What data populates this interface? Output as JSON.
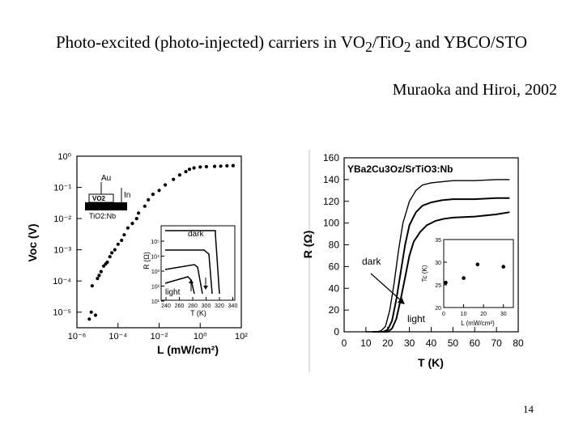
{
  "slide": {
    "title_parts": [
      "Photo-excited (photo-injected) carriers in VO",
      "2",
      "/TiO",
      "2",
      " and YBCO/STO"
    ],
    "authors": "Muraoka and Hiroi, 2002",
    "page_number": "14"
  },
  "chart_data": [
    {
      "type": "scatter",
      "xlabel": "L (mW/cm²)",
      "ylabel": "Voc (V)",
      "x_scale": "log",
      "y_scale": "log",
      "xlim": [
        1e-06,
        100
      ],
      "ylim": [
        3e-06,
        1
      ],
      "x_ticks": [
        "10⁻⁶",
        "10⁻⁴",
        "10⁻²",
        "10⁰",
        "10²"
      ],
      "y_ticks": [
        "10⁰",
        "10⁻¹",
        "10⁻²",
        "10⁻³",
        "10⁻⁴",
        "10⁻⁵"
      ],
      "series": [
        {
          "x": [
            4e-06,
            5e-06,
            5.5e-06,
            8e-06,
            1e-05,
            1.2e-05,
            1.5e-05,
            2e-05,
            2.5e-05,
            3e-05,
            4e-05,
            5e-05,
            7e-05,
            0.0001,
            0.00015,
            0.0002,
            0.0003,
            0.0005,
            0.0008,
            0.001,
            0.002,
            0.003,
            0.005,
            0.01,
            0.02,
            0.05,
            0.1,
            0.2,
            0.3,
            0.5,
            1,
            2,
            5,
            10,
            20,
            40
          ],
          "y": [
            6e-06,
            1e-05,
            7e-05,
            8e-06,
            0.00012,
            0.00015,
            0.0002,
            0.0003,
            0.00035,
            0.0004,
            0.0006,
            0.0008,
            0.001,
            0.0015,
            0.002,
            0.003,
            0.005,
            0.007,
            0.01,
            0.015,
            0.025,
            0.04,
            0.06,
            0.08,
            0.12,
            0.18,
            0.25,
            0.32,
            0.38,
            0.42,
            0.45,
            0.46,
            0.47,
            0.48,
            0.49,
            0.5
          ]
        }
      ],
      "device_labels": [
        "Au",
        "In",
        "VO2",
        "TiO2:Nb"
      ],
      "inset": {
        "xlabel": "T (K)",
        "ylabel": "R (Ω)",
        "x_ticks": [
          "240",
          "260",
          "280",
          "300",
          "320",
          "340"
        ],
        "y_ticks": [
          "10⁵",
          "10⁴",
          "10³",
          "10²",
          "10¹"
        ],
        "labels": [
          "dark",
          "light"
        ]
      }
    },
    {
      "type": "line",
      "title": "YBa2Cu3Oz/SrTiO3:Nb",
      "xlabel": "T (K)",
      "ylabel": "R (Ω)",
      "xlim": [
        0,
        80
      ],
      "ylim": [
        0,
        160
      ],
      "x_ticks": [
        "0",
        "10",
        "20",
        "30",
        "40",
        "50",
        "60",
        "70",
        "80"
      ],
      "y_ticks": [
        "0",
        "20",
        "40",
        "60",
        "80",
        "100",
        "120",
        "140",
        "160"
      ],
      "series": [
        {
          "x": [
            10,
            15,
            17,
            19,
            21,
            23,
            25,
            27,
            30,
            33,
            36,
            40,
            45,
            50,
            60,
            70,
            76
          ],
          "y": [
            0,
            0,
            1,
            5,
            20,
            45,
            75,
            100,
            120,
            130,
            135,
            137,
            138,
            139,
            139,
            140,
            140
          ]
        },
        {
          "x": [
            13,
            18,
            20,
            22,
            24,
            26,
            28,
            30,
            33,
            36,
            40,
            45,
            50,
            60,
            70,
            76
          ],
          "y": [
            0,
            0,
            2,
            10,
            30,
            55,
            80,
            98,
            110,
            116,
            119,
            121,
            122,
            122,
            123,
            123
          ]
        },
        {
          "x": [
            15,
            20,
            22,
            24,
            26,
            28,
            30,
            32,
            35,
            38,
            42,
            46,
            50,
            60,
            70,
            76
          ],
          "y": [
            0,
            0,
            3,
            12,
            30,
            50,
            70,
            83,
            92,
            98,
            102,
            104,
            105,
            106,
            108,
            110
          ]
        }
      ],
      "annotations": [
        "dark",
        "light"
      ],
      "inset": {
        "xlabel": "L (mW/cm²)",
        "ylabel": "Tc (K)",
        "x_ticks": [
          "0",
          "10",
          "20",
          "30"
        ],
        "y_ticks": [
          "20",
          "25",
          "30",
          "35"
        ],
        "xlim": [
          0,
          35
        ],
        "ylim": [
          20,
          35
        ],
        "points": {
          "x": [
            1,
            10,
            17,
            30
          ],
          "y": [
            25.5,
            26.5,
            29.5,
            29
          ]
        }
      }
    }
  ]
}
